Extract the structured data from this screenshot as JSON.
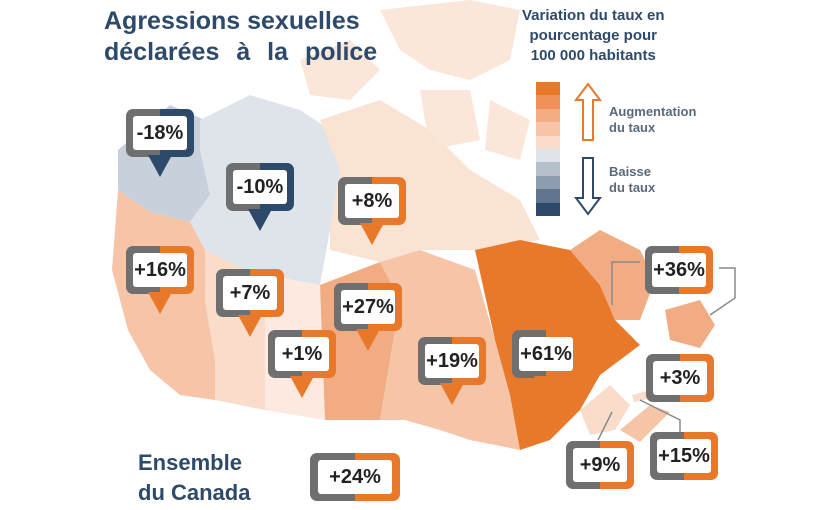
{
  "title": {
    "line1": "Agressions sexuelles",
    "line2": "déclarées à la police"
  },
  "legend": {
    "title_line1": "Variation du taux en",
    "title_line2": "pourcentage pour",
    "title_line3": "100 000 habitants",
    "increase_line1": "Augmentation",
    "increase_line2": "du taux",
    "decrease_line1": "Baisse",
    "decrease_line2": "du taux",
    "scale_colors": [
      "#e8782a",
      "#ee9158",
      "#f2ac84",
      "#f6c4a6",
      "#fadccb",
      "#dfe4ea",
      "#b5c0cc",
      "#8d9caf",
      "#5f7590",
      "#2e4a6b"
    ]
  },
  "colors": {
    "increase_accent": "#e8782a",
    "decrease_accent": "#2e4a6b",
    "title_text": "#2e4a6b"
  },
  "regions": [
    {
      "name_hidden": "yukon",
      "value": -18
    },
    {
      "name_hidden": "nwt",
      "value": -10
    },
    {
      "name_hidden": "nunavut",
      "value": 8
    },
    {
      "name_hidden": "bc",
      "value": 16
    },
    {
      "name_hidden": "alberta",
      "value": 7
    },
    {
      "name_hidden": "saskatchewan",
      "value": 1
    },
    {
      "name_hidden": "manitoba",
      "value": 27
    },
    {
      "name_hidden": "ontario",
      "value": 19
    },
    {
      "name_hidden": "quebec",
      "value": 61
    },
    {
      "name_hidden": "newfoundland",
      "value": 36
    },
    {
      "name_hidden": "pei",
      "value": 3
    },
    {
      "name_hidden": "new-brunswick",
      "value": 9
    },
    {
      "name_hidden": "nova-scotia",
      "value": 15
    }
  ],
  "labels": {
    "yukon": "-18%",
    "nwt": "-10%",
    "nunavut": "+8%",
    "bc": "+16%",
    "alberta": "+7%",
    "saskatchewan": "+1%",
    "manitoba": "+27%",
    "ontario": "+19%",
    "quebec": "+61%",
    "newfoundland": "+36%",
    "pei": "+3%",
    "new_brunswick": "+9%",
    "nova_scotia": "+15%",
    "canada": "+24%"
  },
  "canada_total": {
    "label_line1": "Ensemble",
    "label_line2": "du Canada",
    "value": 24
  }
}
